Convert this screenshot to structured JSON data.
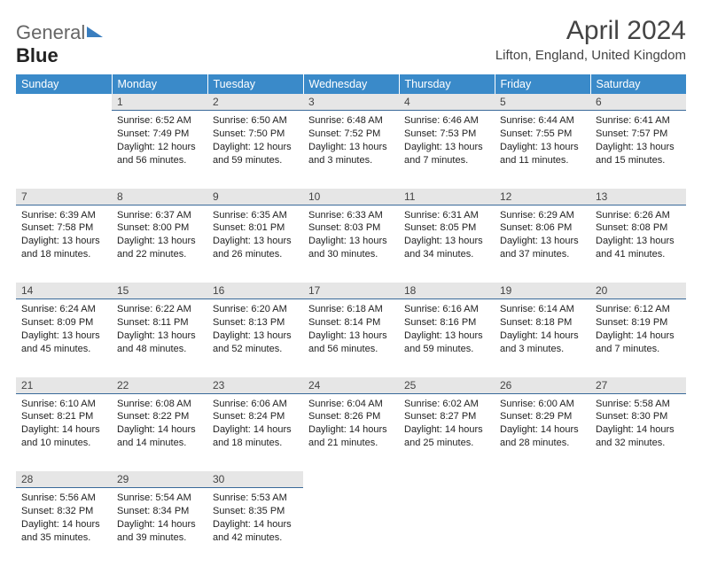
{
  "logo": {
    "part1": "General",
    "part2": "Blue"
  },
  "title": "April 2024",
  "location": "Lifton, England, United Kingdom",
  "colors": {
    "header_bg": "#3a8ac9",
    "header_text": "#ffffff",
    "daynum_bg": "#e6e6e6",
    "daynum_border": "#3a6a9a",
    "text": "#222222",
    "logo_gray": "#666666",
    "logo_accent": "#3a7ebf"
  },
  "day_headers": [
    "Sunday",
    "Monday",
    "Tuesday",
    "Wednesday",
    "Thursday",
    "Friday",
    "Saturday"
  ],
  "weeks": [
    [
      null,
      {
        "n": "1",
        "sunrise": "6:52 AM",
        "sunset": "7:49 PM",
        "daylight": "12 hours and 56 minutes."
      },
      {
        "n": "2",
        "sunrise": "6:50 AM",
        "sunset": "7:50 PM",
        "daylight": "12 hours and 59 minutes."
      },
      {
        "n": "3",
        "sunrise": "6:48 AM",
        "sunset": "7:52 PM",
        "daylight": "13 hours and 3 minutes."
      },
      {
        "n": "4",
        "sunrise": "6:46 AM",
        "sunset": "7:53 PM",
        "daylight": "13 hours and 7 minutes."
      },
      {
        "n": "5",
        "sunrise": "6:44 AM",
        "sunset": "7:55 PM",
        "daylight": "13 hours and 11 minutes."
      },
      {
        "n": "6",
        "sunrise": "6:41 AM",
        "sunset": "7:57 PM",
        "daylight": "13 hours and 15 minutes."
      }
    ],
    [
      {
        "n": "7",
        "sunrise": "6:39 AM",
        "sunset": "7:58 PM",
        "daylight": "13 hours and 18 minutes."
      },
      {
        "n": "8",
        "sunrise": "6:37 AM",
        "sunset": "8:00 PM",
        "daylight": "13 hours and 22 minutes."
      },
      {
        "n": "9",
        "sunrise": "6:35 AM",
        "sunset": "8:01 PM",
        "daylight": "13 hours and 26 minutes."
      },
      {
        "n": "10",
        "sunrise": "6:33 AM",
        "sunset": "8:03 PM",
        "daylight": "13 hours and 30 minutes."
      },
      {
        "n": "11",
        "sunrise": "6:31 AM",
        "sunset": "8:05 PM",
        "daylight": "13 hours and 34 minutes."
      },
      {
        "n": "12",
        "sunrise": "6:29 AM",
        "sunset": "8:06 PM",
        "daylight": "13 hours and 37 minutes."
      },
      {
        "n": "13",
        "sunrise": "6:26 AM",
        "sunset": "8:08 PM",
        "daylight": "13 hours and 41 minutes."
      }
    ],
    [
      {
        "n": "14",
        "sunrise": "6:24 AM",
        "sunset": "8:09 PM",
        "daylight": "13 hours and 45 minutes."
      },
      {
        "n": "15",
        "sunrise": "6:22 AM",
        "sunset": "8:11 PM",
        "daylight": "13 hours and 48 minutes."
      },
      {
        "n": "16",
        "sunrise": "6:20 AM",
        "sunset": "8:13 PM",
        "daylight": "13 hours and 52 minutes."
      },
      {
        "n": "17",
        "sunrise": "6:18 AM",
        "sunset": "8:14 PM",
        "daylight": "13 hours and 56 minutes."
      },
      {
        "n": "18",
        "sunrise": "6:16 AM",
        "sunset": "8:16 PM",
        "daylight": "13 hours and 59 minutes."
      },
      {
        "n": "19",
        "sunrise": "6:14 AM",
        "sunset": "8:18 PM",
        "daylight": "14 hours and 3 minutes."
      },
      {
        "n": "20",
        "sunrise": "6:12 AM",
        "sunset": "8:19 PM",
        "daylight": "14 hours and 7 minutes."
      }
    ],
    [
      {
        "n": "21",
        "sunrise": "6:10 AM",
        "sunset": "8:21 PM",
        "daylight": "14 hours and 10 minutes."
      },
      {
        "n": "22",
        "sunrise": "6:08 AM",
        "sunset": "8:22 PM",
        "daylight": "14 hours and 14 minutes."
      },
      {
        "n": "23",
        "sunrise": "6:06 AM",
        "sunset": "8:24 PM",
        "daylight": "14 hours and 18 minutes."
      },
      {
        "n": "24",
        "sunrise": "6:04 AM",
        "sunset": "8:26 PM",
        "daylight": "14 hours and 21 minutes."
      },
      {
        "n": "25",
        "sunrise": "6:02 AM",
        "sunset": "8:27 PM",
        "daylight": "14 hours and 25 minutes."
      },
      {
        "n": "26",
        "sunrise": "6:00 AM",
        "sunset": "8:29 PM",
        "daylight": "14 hours and 28 minutes."
      },
      {
        "n": "27",
        "sunrise": "5:58 AM",
        "sunset": "8:30 PM",
        "daylight": "14 hours and 32 minutes."
      }
    ],
    [
      {
        "n": "28",
        "sunrise": "5:56 AM",
        "sunset": "8:32 PM",
        "daylight": "14 hours and 35 minutes."
      },
      {
        "n": "29",
        "sunrise": "5:54 AM",
        "sunset": "8:34 PM",
        "daylight": "14 hours and 39 minutes."
      },
      {
        "n": "30",
        "sunrise": "5:53 AM",
        "sunset": "8:35 PM",
        "daylight": "14 hours and 42 minutes."
      },
      null,
      null,
      null,
      null
    ]
  ],
  "labels": {
    "sunrise": "Sunrise:",
    "sunset": "Sunset:",
    "daylight": "Daylight:"
  }
}
